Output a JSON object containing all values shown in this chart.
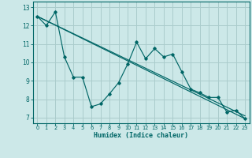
{
  "xlabel": "Humidex (Indice chaleur)",
  "background_color": "#cce8e8",
  "grid_color": "#aacccc",
  "line_color": "#006666",
  "xlim": [
    -0.5,
    23.5
  ],
  "ylim": [
    6.7,
    13.3
  ],
  "xticks": [
    0,
    1,
    2,
    3,
    4,
    5,
    6,
    7,
    8,
    9,
    10,
    11,
    12,
    13,
    14,
    15,
    16,
    17,
    18,
    19,
    20,
    21,
    22,
    23
  ],
  "yticks": [
    7,
    8,
    9,
    10,
    11,
    12,
    13
  ],
  "line1_x": [
    0,
    1,
    2,
    3,
    4,
    5,
    6,
    7,
    8,
    9,
    10,
    11,
    12,
    13,
    14,
    15,
    16,
    17,
    18,
    19,
    20,
    21,
    22,
    23
  ],
  "line1_y": [
    12.5,
    12.0,
    12.75,
    10.3,
    9.2,
    9.2,
    7.6,
    7.75,
    8.3,
    8.9,
    9.9,
    11.1,
    10.2,
    10.75,
    10.3,
    10.45,
    9.5,
    8.55,
    8.35,
    8.1,
    8.1,
    7.3,
    7.4,
    6.95
  ],
  "line2_x": [
    0,
    23
  ],
  "line2_y": [
    12.5,
    6.95
  ],
  "line3_x": [
    0,
    23
  ],
  "line3_y": [
    12.5,
    7.1
  ]
}
